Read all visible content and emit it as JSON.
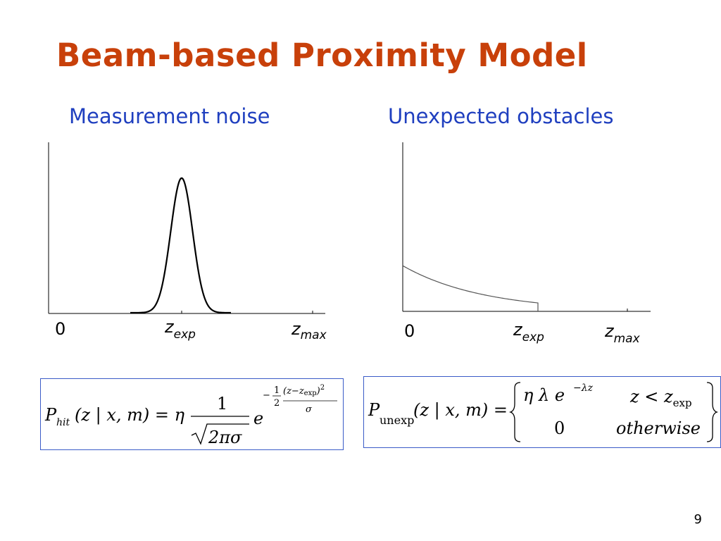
{
  "slide": {
    "title": "Beam-based Proximity Model",
    "page_number": "9"
  },
  "left_panel": {
    "heading": "Measurement noise",
    "axis_labels": {
      "zero": "0",
      "z_exp_main": "z",
      "z_exp_sub": "exp",
      "z_max_main": "z",
      "z_max_sub": "max"
    },
    "formula": {
      "lhs_P": "P",
      "lhs_sub": "hit",
      "lhs_args": "(z | x, m) = η",
      "numerator": "1",
      "denominator": "2πσ",
      "base": "e",
      "exp_neg": "−",
      "exp_half_num": "1",
      "exp_half_den": "2",
      "exp_frac_num": "(z−z",
      "exp_frac_num_sub": "exp",
      "exp_frac_num_close": ")",
      "exp_frac_num_pow": "2",
      "exp_frac_den": "σ"
    }
  },
  "right_panel": {
    "heading": "Unexpected obstacles",
    "axis_labels": {
      "zero": "0",
      "z_exp_main": "z",
      "z_exp_sub": "exp",
      "z_max_main": "z",
      "z_max_sub": "max"
    },
    "formula": {
      "lhs_P": "P",
      "lhs_sub": "unexp",
      "lhs_args": "(z | x, m) =",
      "case1_value": "η λ e",
      "case1_exp": "−λz",
      "case1_cond": "z < z",
      "case1_cond_sub": "exp",
      "case2_value": "0",
      "case2_cond": "otherwise"
    }
  },
  "chart_data": [
    {
      "type": "line",
      "title": "Measurement noise",
      "xlabel": "",
      "ylabel": "",
      "x_ticks": [
        "0",
        "z_exp",
        "z_max"
      ],
      "series": [
        {
          "shape": "gaussian",
          "peak_at": "z_exp",
          "relative_peak_height": 0.8
        }
      ]
    },
    {
      "type": "line",
      "title": "Unexpected obstacles",
      "xlabel": "",
      "ylabel": "",
      "x_ticks": [
        "0",
        "z_exp",
        "z_max"
      ],
      "series": [
        {
          "shape": "exponential_decay",
          "start": "0",
          "cutoff_at": "z_exp",
          "relative_start_height": 0.27,
          "relative_end_height": 0.05
        }
      ]
    }
  ]
}
